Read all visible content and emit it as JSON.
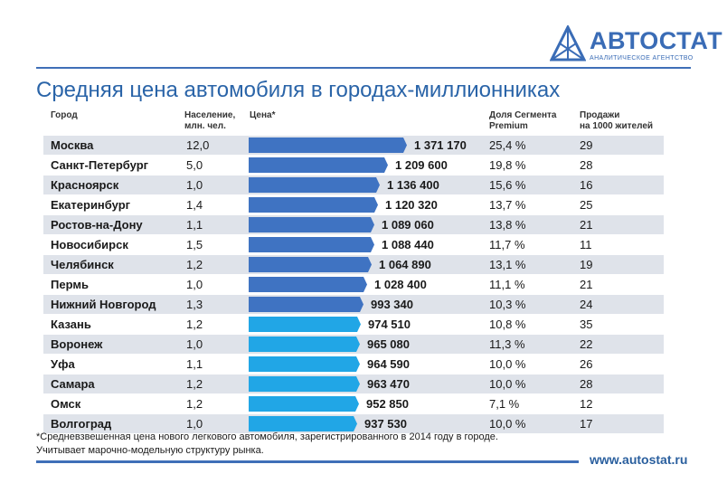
{
  "logo": {
    "name": "АВТОСТАТ",
    "subtitle": "АНАЛИТИЧЕСКОЕ АГЕНТСТВО"
  },
  "title": "Средняя цена автомобиля в городах-миллионниках",
  "headers": {
    "city": "Город",
    "population": [
      "Население,",
      "млн. чел."
    ],
    "price": "Цена*",
    "premium": [
      "Доля Сегмента",
      "Premium"
    ],
    "sales": [
      "Продажи",
      "на 1000 жителей"
    ]
  },
  "colors": {
    "dark_bar": "#3f73c2",
    "light_bar": "#21a6e6",
    "accent": "#3f6fb8",
    "row_alt": "#dfe3ea"
  },
  "chart_data": {
    "type": "table",
    "title": "Средняя цена автомобиля в городах-миллионниках",
    "columns": [
      "Город",
      "Население, млн. чел.",
      "Цена*",
      "Доля Сегмента Premium",
      "Продажи на 1000 жителей"
    ],
    "rows": [
      {
        "city": "Москва",
        "population": "12,0",
        "price": 1371170,
        "price_label": "1 371 170",
        "premium": "25,4 %",
        "sales": "29"
      },
      {
        "city": "Санкт-Петербург",
        "population": "5,0",
        "price": 1209600,
        "price_label": "1 209 600",
        "premium": "19,8 %",
        "sales": "28"
      },
      {
        "city": "Красноярск",
        "population": "1,0",
        "price": 1136400,
        "price_label": "1 136 400",
        "premium": "15,6 %",
        "sales": "16"
      },
      {
        "city": "Екатеринбург",
        "population": "1,4",
        "price": 1120320,
        "price_label": "1 120 320",
        "premium": "13,7 %",
        "sales": "25"
      },
      {
        "city": "Ростов-на-Дону",
        "population": "1,1",
        "price": 1089060,
        "price_label": "1 089 060",
        "premium": "13,8 %",
        "sales": "21"
      },
      {
        "city": "Новосибирск",
        "population": "1,5",
        "price": 1088440,
        "price_label": "1 088 440",
        "premium": "11,7 %",
        "sales": "11"
      },
      {
        "city": "Челябинск",
        "population": "1,2",
        "price": 1064890,
        "price_label": "1 064 890",
        "premium": "13,1 %",
        "sales": "19"
      },
      {
        "city": "Пермь",
        "population": "1,0",
        "price": 1028400,
        "price_label": "1 028 400",
        "premium": "11,1 %",
        "sales": "21"
      },
      {
        "city": "Нижний Новгород",
        "population": "1,3",
        "price": 993340,
        "price_label": "993 340",
        "premium": "10,3 %",
        "sales": "24"
      },
      {
        "city": "Казань",
        "population": "1,2",
        "price": 974510,
        "price_label": "974 510",
        "premium": "10,8 %",
        "sales": "35"
      },
      {
        "city": "Воронеж",
        "population": "1,0",
        "price": 965080,
        "price_label": "965 080",
        "premium": "11,3 %",
        "sales": "22"
      },
      {
        "city": "Уфа",
        "population": "1,1",
        "price": 964590,
        "price_label": "964 590",
        "premium": "10,0 %",
        "sales": "26"
      },
      {
        "city": "Самара",
        "population": "1,2",
        "price": 963470,
        "price_label": "963 470",
        "premium": "10,0 %",
        "sales": "28"
      },
      {
        "city": "Омск",
        "population": "1,2",
        "price": 952850,
        "price_label": "952 850",
        "premium": "7,1 %",
        "sales": "12"
      },
      {
        "city": "Волгоград",
        "population": "1,0",
        "price": 937530,
        "price_label": "937 530",
        "premium": "10,0 %",
        "sales": "17"
      }
    ],
    "dark_bar_rows": 9
  },
  "footnote": [
    "*Средневзвешенная цена нового легкового автомобиля, зарегистрированного в 2014 году в городе.",
    "Учитывает марочно-модельную структуру рынка."
  ],
  "url": "www.autostat.ru"
}
